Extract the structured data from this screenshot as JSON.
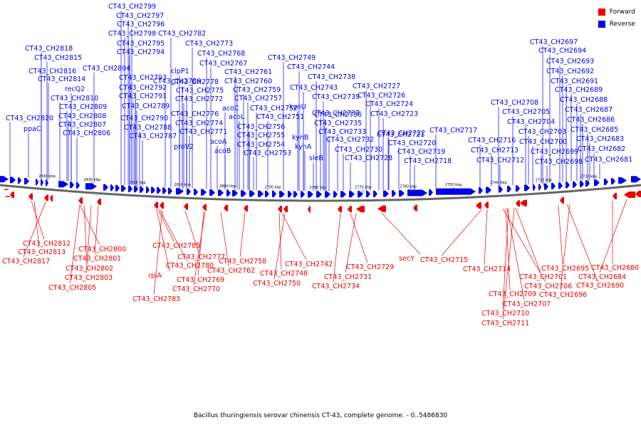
{
  "legend": {
    "forward_label": "Forward",
    "reverse_label": "Reverse",
    "forward_color": "#ee0000",
    "reverse_color": "#0000ee"
  },
  "caption": "Bacillus thuringiensis serovar chinensis CT-43, complete genome. - 0..5486830",
  "colors": {
    "forward": "#ee0000",
    "reverse": "#0000ee",
    "axis": "#888888",
    "text": "#000000"
  },
  "ticks": [
    "2840 kbp",
    "2830 kbp",
    "2820 kbp",
    "2810 kbp",
    "2800 kbp",
    "2790 kbp",
    "2780 kbp",
    "2770 kbp",
    "2760 kbp",
    "2750 kbp",
    "2740 kbp",
    "2730 kbp",
    "2720 kbp"
  ],
  "reverse_labels": [
    "CT43_CH2799",
    "CT43_CH2797",
    "CT43_CH2796",
    "CT43_CH2798",
    "CT43_CH2782",
    "CT43_CH2818",
    "CT43_CH2795",
    "CT43_CH2773",
    "CT43_CH2815",
    "CT43_CH2794",
    "CT43_CH2768",
    "CT43_CH2749",
    "CT43_CH2816",
    "CT43_CH2804",
    "CT43_CH2786",
    "CT43_CH2767",
    "CT43_CH2744",
    "CT43_CH2814",
    "CT43_CH2793",
    "clpP1",
    "CT43_CH2761",
    "CT43_CH2738",
    "recQ2",
    "CT43_CH2792",
    "CT43_CH2778",
    "CT43_CH2760",
    "CT43_CH2727",
    "CT43_CH2810",
    "CT43_CH2791",
    "CT43_CH2775",
    "CT43_CH2759",
    "CT43_CH2743",
    "CT43_CH2726",
    "CT43_CH2809",
    "CT43_CH2789",
    "CT43_CH2772",
    "CT43_CH2757",
    "CT43_CH2739",
    "CT43_CH2724",
    "CT43_CH2820",
    "CT43_CH2808",
    "CT43_CH2790",
    "CT43_CH2776",
    "acoC",
    "CT43_CH2752",
    "CT43_CH2737",
    "CT43_CH2723",
    "ppaC",
    "CT43_CH2807",
    "CT43_CH2788",
    "CT43_CH2774",
    "acoL",
    "CT43_CH2751",
    "kynU",
    "CT43_CH2736",
    "CT43_CH2806",
    "CT43_CH2787",
    "CT43_CH2771",
    "CT43_CH2756",
    "CT43_CH2735",
    "CT43_CH2722",
    "proV2",
    "acoA",
    "CT43_CH2755",
    "kynB",
    "CT43_CH2733",
    "CT43_CH2721",
    "acoB",
    "CT43_CH2754",
    "kynA",
    "CT43_CH2732",
    "CT43_CH2720",
    "CT43_CH2753",
    "sleB",
    "CT43_CH2730",
    "CT43_CH2719",
    "CT43_CH2728",
    "CT43_CH2718",
    "CT43_CH2708",
    "CT43_CH2705",
    "CT43_CH2704",
    "CT43_CH2717",
    "CT43_CH2716",
    "CT43_CH2703",
    "CT43_CH2700",
    "CT43_CH2713",
    "CT43_CH2699",
    "CT43_CH2712",
    "CT43_CH2698",
    "CT43_CH2697",
    "CT43_CH2694",
    "CT43_CH2693",
    "CT43_CH2692",
    "CT43_CH2691",
    "CT43_CH2689",
    "CT43_CH2688",
    "CT43_CH2687",
    "CT43_CH2686",
    "CT43_CH2685",
    "CT43_CH2683",
    "CT43_CH2682",
    "CT43_CH2681"
  ],
  "forward_labels": [
    "CT43_CH2812",
    "CT43_CH2813",
    "CT43_CH2817",
    "CT43_CH2800",
    "CT43_CH2801",
    "CT43_CH2802",
    "CT43_CH2803",
    "CT43_CH2805",
    "CT43_CH2785",
    "CT43_CH2777",
    "CT43_CH2780",
    "rpiA",
    "CT43_CH2769",
    "CT43_CH2770",
    "CT43_CH2783",
    "CT43_CH2758",
    "CT43_CH2762",
    "CT43_CH2742",
    "CT43_CH2748",
    "CT43_CH2750",
    "CT43_CH2729",
    "CT43_CH2731",
    "CT43_CH2734",
    "secY",
    "CT43_CH2715",
    "CT43_CH2714",
    "CT43_CH2695",
    "CT43_CH2701",
    "CT43_CH2706",
    "CT43_CH2709",
    "CT43_CH2707",
    "CT43_CH2710",
    "CT43_CH2711",
    "CT43_CH2690",
    "CT43_CH2696",
    "CT43_CH2680",
    "CT43_CH2684"
  ]
}
